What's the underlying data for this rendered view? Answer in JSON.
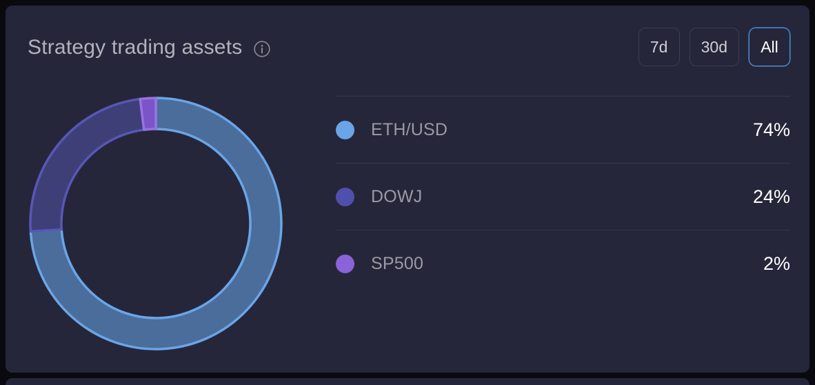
{
  "header": {
    "title": "Strategy trading assets"
  },
  "range_buttons": [
    {
      "label": "7d",
      "selected": false
    },
    {
      "label": "30d",
      "selected": false
    },
    {
      "label": "All",
      "selected": true
    }
  ],
  "accent_color": "#4a8fd8",
  "card_bg_color": "#26263a",
  "chart_data": {
    "type": "pie",
    "subtype": "donut",
    "title": "Strategy trading assets",
    "start_angle_deg": 0,
    "direction": "clockwise",
    "legend_position": "right",
    "segments": [
      {
        "label": "ETH/USD",
        "value": 74,
        "percent_label": "74%",
        "legend_color": "#6aa5e8",
        "fill": "#4a6d9b",
        "stroke": "#6aa5e8"
      },
      {
        "label": "DOWJ",
        "value": 24,
        "percent_label": "24%",
        "legend_color": "#4f4fae",
        "fill": "#3f3f78",
        "stroke": "#5757b8"
      },
      {
        "label": "SP500",
        "value": 2,
        "percent_label": "2%",
        "legend_color": "#8a63d8",
        "fill": "#7b55c8",
        "stroke": "#9673e2"
      }
    ]
  }
}
